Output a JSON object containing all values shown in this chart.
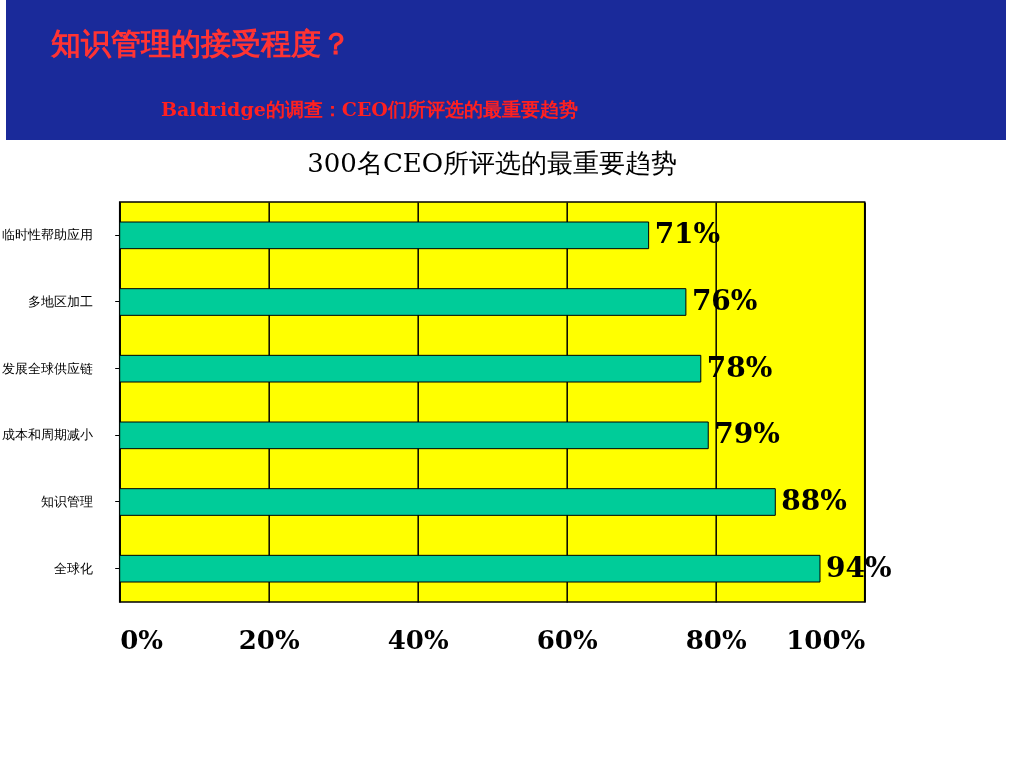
{
  "chart_data": {
    "type": "bar",
    "orientation": "horizontal",
    "title": "知识管理的接受程度？",
    "subtitle": "Baldridge的调查：CEO们所评选的最重要趋势",
    "annotations": [
      "300名CEO所评选的最重要趋势"
    ],
    "categories": [
      "临时性帮助应用",
      "多地区加工",
      "发展全球供应链",
      "成本和周期减小",
      "知识管理",
      "全球化"
    ],
    "values": [
      71,
      76,
      78,
      79,
      88,
      94
    ],
    "color": "#00cc99",
    "value_labels": [
      "71%",
      "76%",
      "78%",
      "79%",
      "88%",
      "94%"
    ],
    "xlim": [
      0,
      100
    ],
    "xticks": [
      {
        "value": 0,
        "label": "0%"
      },
      {
        "value": 20,
        "label": "20%"
      },
      {
        "value": 40,
        "label": "40%"
      },
      {
        "value": 60,
        "label": "60%"
      },
      {
        "value": 80,
        "label": "80%"
      },
      {
        "value": 100,
        "label": "100%"
      }
    ],
    "grid": "x"
  }
}
